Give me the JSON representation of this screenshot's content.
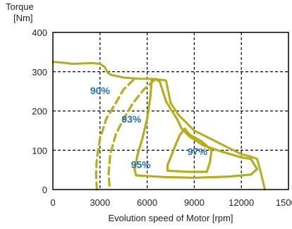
{
  "chart_data": {
    "type": "line",
    "title": "",
    "xlabel": "Evolution speed of Motor [rpm]",
    "ylabel_line1": "Torque",
    "ylabel_line2": "[Nm]",
    "xlim": [
      0,
      15000
    ],
    "ylim": [
      0,
      400
    ],
    "xticks": [
      0,
      3000,
      6000,
      9000,
      12000,
      15000
    ],
    "yticks": [
      0,
      100,
      200,
      300,
      400
    ],
    "grid": "dashed",
    "colors": {
      "curve": "#b5ad1c",
      "label": "#1e6fbf",
      "grid": "#000000"
    },
    "series": [
      {
        "name": "",
        "kind": "max-torque",
        "style": "solid",
        "points": [
          [
            0,
            325
          ],
          [
            900,
            322
          ],
          [
            1200,
            320
          ],
          [
            2500,
            322
          ],
          [
            3000,
            320
          ],
          [
            3300,
            312
          ],
          [
            3500,
            297
          ],
          [
            3700,
            292
          ],
          [
            4500,
            285
          ],
          [
            5500,
            282
          ],
          [
            6500,
            281
          ],
          [
            7200,
            278
          ],
          [
            7500,
            220
          ],
          [
            8000,
            190
          ],
          [
            8500,
            170
          ],
          [
            9000,
            150
          ],
          [
            10500,
            120
          ],
          [
            11500,
            100
          ],
          [
            12000,
            90
          ],
          [
            12500,
            85
          ],
          [
            13000,
            78
          ],
          [
            13200,
            50
          ],
          [
            13500,
            0
          ]
        ]
      },
      {
        "name": "",
        "kind": "efficiency-contour",
        "style": "dashed",
        "points": [
          [
            2800,
            0
          ],
          [
            2750,
            40
          ],
          [
            2800,
            80
          ],
          [
            3000,
            130
          ],
          [
            3400,
            180
          ],
          [
            4000,
            220
          ],
          [
            4500,
            255
          ],
          [
            5200,
            282
          ]
        ]
      },
      {
        "name": "",
        "kind": "efficiency-contour",
        "style": "dashed",
        "points": [
          [
            3600,
            10
          ],
          [
            3550,
            40
          ],
          [
            3650,
            90
          ],
          [
            4000,
            140
          ],
          [
            4500,
            180
          ],
          [
            5100,
            220
          ],
          [
            5800,
            255
          ],
          [
            6500,
            280
          ]
        ]
      },
      {
        "name": "",
        "kind": "efficiency-contour",
        "style": "solid",
        "points": [
          [
            6500,
            282
          ],
          [
            6800,
            275
          ],
          [
            7000,
            250
          ],
          [
            7200,
            225
          ],
          [
            7500,
            205
          ],
          [
            7900,
            180
          ],
          [
            8200,
            155
          ],
          [
            8700,
            135
          ],
          [
            9600,
            112
          ],
          [
            10800,
            96
          ],
          [
            12000,
            82
          ],
          [
            12600,
            78
          ],
          [
            13000,
            52
          ],
          [
            12600,
            38
          ],
          [
            11200,
            33
          ],
          [
            9000,
            30
          ],
          [
            7000,
            32
          ],
          [
            5300,
            36
          ],
          [
            5200,
            50
          ],
          [
            5400,
            90
          ],
          [
            5700,
            130
          ],
          [
            6000,
            180
          ],
          [
            6200,
            235
          ],
          [
            6300,
            282
          ]
        ]
      },
      {
        "name": "",
        "kind": "efficiency-contour",
        "style": "solid",
        "points": [
          [
            7300,
            48
          ],
          [
            7300,
            62
          ],
          [
            7600,
            92
          ],
          [
            7900,
            122
          ],
          [
            8100,
            140
          ],
          [
            8400,
            155
          ],
          [
            8700,
            140
          ],
          [
            9500,
            122
          ],
          [
            10100,
            100
          ],
          [
            10000,
            70
          ],
          [
            9800,
            45
          ],
          [
            8600,
            45
          ],
          [
            7300,
            48
          ]
        ]
      }
    ],
    "annotations": [
      {
        "text": "90%",
        "x": 3000,
        "y": 243
      },
      {
        "text": "93%",
        "x": 5000,
        "y": 170
      },
      {
        "text": "95%",
        "x": 5600,
        "y": 55
      },
      {
        "text": "97%",
        "x": 9200,
        "y": 88
      }
    ]
  }
}
